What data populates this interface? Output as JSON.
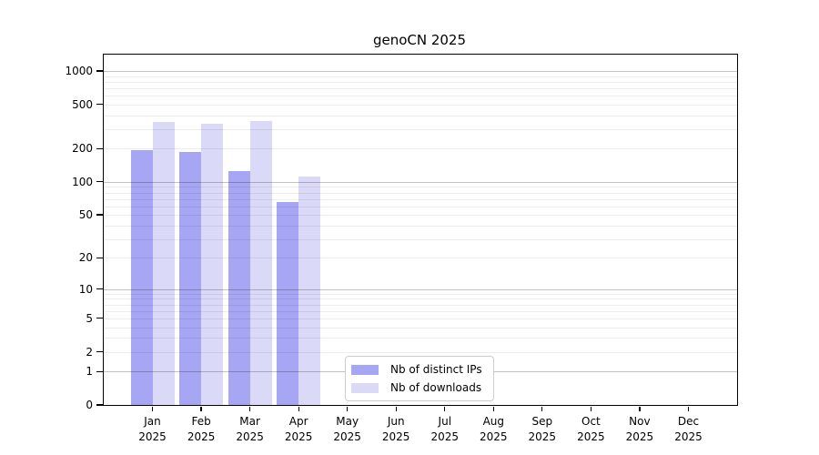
{
  "chart_data": {
    "type": "bar",
    "title": "genoCN 2025",
    "scale": "log10(1+y)",
    "categories": [
      "Jan",
      "Feb",
      "Mar",
      "Apr",
      "May",
      "Jun",
      "Jul",
      "Aug",
      "Sep",
      "Oct",
      "Nov",
      "Dec"
    ],
    "year_label": "2025",
    "series": [
      {
        "name": "Nb of distinct IPs",
        "color": "#a6a6f4",
        "values": [
          193,
          186,
          125,
          65,
          null,
          null,
          null,
          null,
          null,
          null,
          null,
          null
        ]
      },
      {
        "name": "Nb of downloads",
        "color": "#dadaf8",
        "values": [
          346,
          334,
          353,
          111,
          null,
          null,
          null,
          null,
          null,
          null,
          null,
          null
        ]
      }
    ],
    "yticks": [
      0,
      1,
      2,
      5,
      10,
      20,
      50,
      100,
      200,
      500,
      1000
    ],
    "ylim": [
      0,
      1400
    ],
    "grid": {
      "major": [
        1,
        10,
        100,
        1000
      ],
      "minor": [
        2,
        3,
        4,
        5,
        6,
        7,
        8,
        9,
        20,
        30,
        40,
        50,
        60,
        70,
        80,
        90,
        200,
        300,
        400,
        500,
        600,
        700,
        800,
        900
      ]
    },
    "legend_position": "inside-bottom-center"
  },
  "colors": {
    "background": "#ffffff",
    "axis": "#000000",
    "grid_major": "#c4c4c4",
    "grid_minor": "#ececec",
    "legend_border": "#cccccc",
    "text": "#000000"
  }
}
